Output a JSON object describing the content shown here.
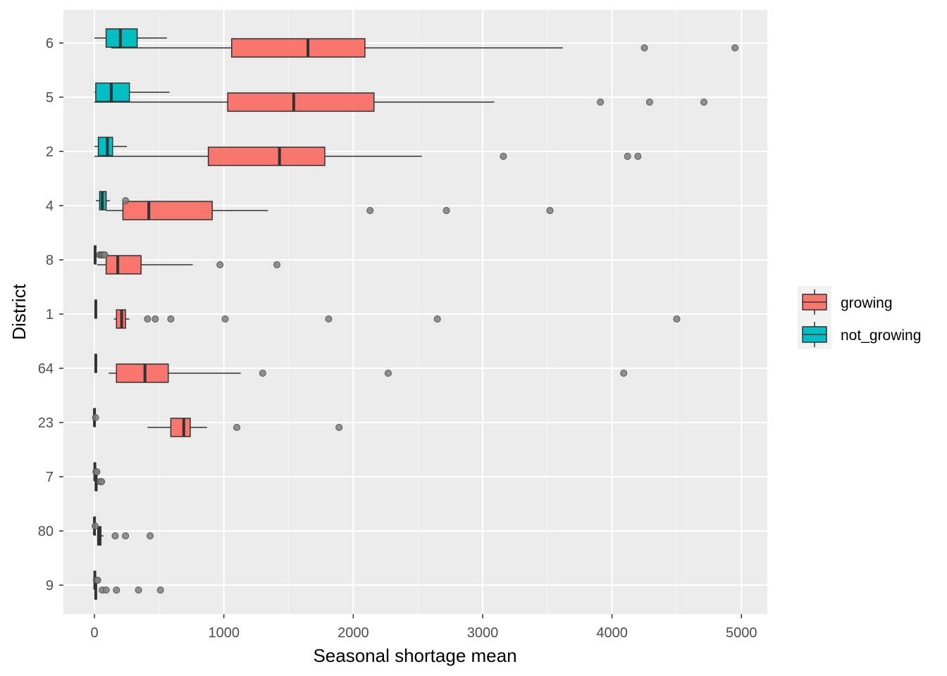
{
  "chart_data": {
    "type": "boxplot",
    "orientation": "horizontal",
    "xlabel": "Seasonal shortage mean",
    "ylabel": "District",
    "xlim": [
      -240,
      5200
    ],
    "x_ticks": [
      0,
      1000,
      2000,
      3000,
      4000,
      5000
    ],
    "categories": [
      "6",
      "5",
      "2",
      "4",
      "8",
      "1",
      "64",
      "23",
      "7",
      "80",
      "9"
    ],
    "grid": true,
    "legend": {
      "placement": "right",
      "entries": [
        {
          "name": "growing",
          "color": "#F8766D"
        },
        {
          "name": "not_growing",
          "color": "#00BFC4"
        }
      ]
    },
    "series": [
      {
        "name": "growing",
        "color": "#F8766D",
        "boxes": [
          {
            "district": "6",
            "min": 130,
            "q1": 1060,
            "median": 1650,
            "q3": 2090,
            "max": 3620,
            "outliers": [
              4250,
              4950
            ]
          },
          {
            "district": "5",
            "min": 0,
            "q1": 1030,
            "median": 1540,
            "q3": 2160,
            "max": 3090,
            "outliers": [
              3910,
              4290,
              4710
            ]
          },
          {
            "district": "2",
            "min": 0,
            "q1": 880,
            "median": 1430,
            "q3": 1780,
            "max": 2530,
            "outliers": [
              3160,
              4120,
              4200
            ]
          },
          {
            "district": "4",
            "min": 90,
            "q1": 220,
            "median": 420,
            "q3": 910,
            "max": 1340,
            "outliers": [
              2130,
              2720,
              3520
            ]
          },
          {
            "district": "8",
            "min": 20,
            "q1": 90,
            "median": 180,
            "q3": 360,
            "max": 760,
            "outliers": [
              970,
              1410
            ]
          },
          {
            "district": "1",
            "min": 150,
            "q1": 170,
            "median": 210,
            "q3": 240,
            "max": 270,
            "outliers": [
              410,
              470,
              590,
              1010,
              1810,
              2650,
              4500
            ]
          },
          {
            "district": "64",
            "min": 110,
            "q1": 170,
            "median": 390,
            "q3": 570,
            "max": 1130,
            "outliers": [
              1300,
              2270,
              4090
            ]
          },
          {
            "district": "23",
            "min": 410,
            "q1": 590,
            "median": 690,
            "q3": 740,
            "max": 870,
            "outliers": [
              1100,
              1890
            ]
          },
          {
            "district": "7",
            "min": 5,
            "q1": 8,
            "median": 12,
            "q3": 20,
            "max": 28,
            "outliers": [
              45,
              55
            ]
          },
          {
            "district": "80",
            "min": 20,
            "q1": 25,
            "median": 35,
            "q3": 50,
            "max": 70,
            "outliers": [
              160,
              240,
              430
            ]
          },
          {
            "district": "9",
            "min": 0,
            "q1": 5,
            "median": 10,
            "q3": 15,
            "max": 20,
            "outliers": [
              60,
              90,
              170,
              340,
              510
            ]
          }
        ]
      },
      {
        "name": "not_growing",
        "color": "#00BFC4",
        "boxes": [
          {
            "district": "6",
            "min": 0,
            "q1": 90,
            "median": 200,
            "q3": 330,
            "max": 560,
            "outliers": []
          },
          {
            "district": "5",
            "min": 0,
            "q1": 10,
            "median": 130,
            "q3": 270,
            "max": 580,
            "outliers": []
          },
          {
            "district": "2",
            "min": 0,
            "q1": 30,
            "median": 100,
            "q3": 140,
            "max": 250,
            "outliers": []
          },
          {
            "district": "4",
            "min": 10,
            "q1": 40,
            "median": 60,
            "q3": 90,
            "max": 120,
            "outliers": [
              240
            ]
          },
          {
            "district": "8",
            "min": 0,
            "q1": 2,
            "median": 5,
            "q3": 10,
            "max": 20,
            "outliers": [
              40,
              50,
              60,
              70,
              80
            ]
          },
          {
            "district": "1",
            "min": 0,
            "q1": 5,
            "median": 10,
            "q3": 15,
            "max": 20,
            "outliers": []
          },
          {
            "district": "64",
            "min": 0,
            "q1": 5,
            "median": 10,
            "q3": 15,
            "max": 20,
            "outliers": []
          },
          {
            "district": "23",
            "min": 0,
            "q1": 0,
            "median": 0,
            "q3": 2,
            "max": 5,
            "outliers": [
              8
            ]
          },
          {
            "district": "7",
            "min": 0,
            "q1": 1,
            "median": 3,
            "q3": 5,
            "max": 8,
            "outliers": [
              12,
              18
            ]
          },
          {
            "district": "80",
            "min": 0,
            "q1": 0,
            "median": 0,
            "q3": 1,
            "max": 2,
            "outliers": [
              5
            ]
          },
          {
            "district": "9",
            "min": 0,
            "q1": 1,
            "median": 3,
            "q3": 5,
            "max": 8,
            "outliers": [
              15,
              20,
              25
            ]
          }
        ]
      }
    ]
  }
}
